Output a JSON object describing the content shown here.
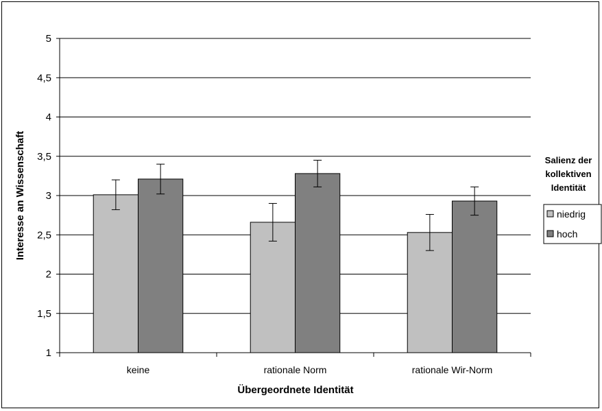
{
  "chart_data": {
    "type": "bar",
    "title": "",
    "xlabel": "Übergeordnete Identität",
    "ylabel": "Interesse an Wissenschaft",
    "ylim": [
      1,
      5
    ],
    "yticks": [
      1,
      1.5,
      2,
      2.5,
      3,
      3.5,
      4,
      4.5,
      5
    ],
    "ytick_labels": [
      "1",
      "1,5",
      "2",
      "2,5",
      "3",
      "3,5",
      "4",
      "4,5",
      "5"
    ],
    "categories": [
      "keine",
      "rationale Norm",
      "rationale Wir-Norm"
    ],
    "series": [
      {
        "name": "niedrig",
        "color": "#c0c0c0",
        "values": [
          3.01,
          2.66,
          2.53
        ],
        "errors": [
          0.19,
          0.24,
          0.23
        ]
      },
      {
        "name": "hoch",
        "color": "#808080",
        "values": [
          3.21,
          3.28,
          2.93
        ],
        "errors": [
          0.19,
          0.17,
          0.18
        ]
      }
    ],
    "grid": true,
    "error_bars": true,
    "legend": {
      "title_lines": [
        "Salienz der",
        "kollektiven",
        "Identität"
      ],
      "placement": "right"
    }
  }
}
